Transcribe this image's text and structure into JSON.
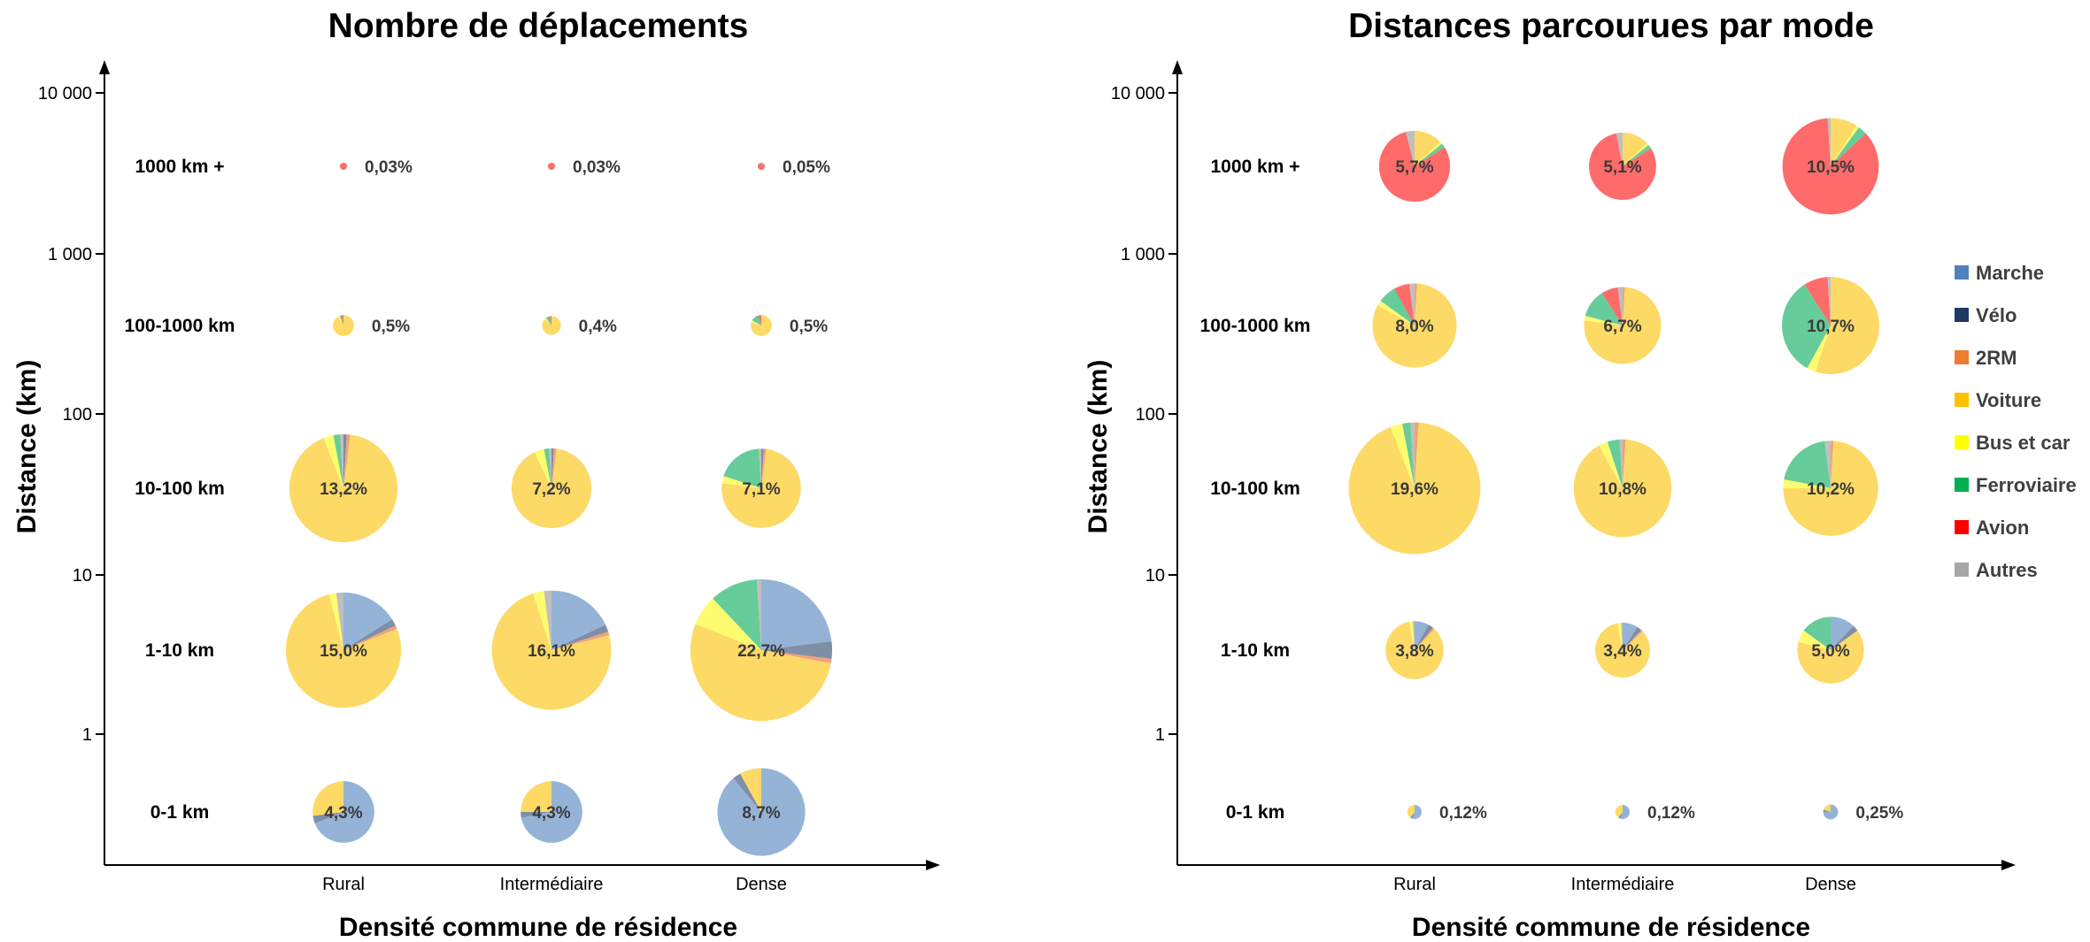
{
  "modes": [
    {
      "name": "Marche",
      "color": "#95b3d7"
    },
    {
      "name": "Vélo",
      "color": "#7f8fa6"
    },
    {
      "name": "2RM",
      "color": "#f2a27a"
    },
    {
      "name": "Voiture",
      "color": "#fdd966"
    },
    {
      "name": "Bus et car",
      "color": "#fdfc6e"
    },
    {
      "name": "Ferroviaire",
      "color": "#66cc99"
    },
    {
      "name": "Avion",
      "color": "#fe6b6b"
    },
    {
      "name": "Autres",
      "color": "#bfbfbf"
    }
  ],
  "legend": [
    {
      "name": "Marche",
      "color": "#4f81bd"
    },
    {
      "name": "Vélo",
      "color": "#1f3864"
    },
    {
      "name": "2RM",
      "color": "#ed7d31"
    },
    {
      "name": "Voiture",
      "color": "#ffc000"
    },
    {
      "name": "Bus et car",
      "color": "#ffff00"
    },
    {
      "name": "Ferroviaire",
      "color": "#00b050"
    },
    {
      "name": "Avion",
      "color": "#ff0000"
    },
    {
      "name": "Autres",
      "color": "#a6a6a6"
    }
  ],
  "chart_data": [
    {
      "type": "pie-grid",
      "title": "Nombre de déplacements",
      "xlabel": "Densité commune de résidence",
      "ylabel": "Distance (km)",
      "y_ticks": [
        "10 000",
        "1 000",
        "100",
        "10",
        "1"
      ],
      "columns": [
        "Rural",
        "Intermédiaire",
        "Dense"
      ],
      "rows": [
        "1000 km +",
        "100-1000 km",
        "10-100 km",
        "1-10 km",
        "0-1 km"
      ],
      "cells": [
        [
          {
            "label": "0,03%",
            "value": 0.03,
            "shares": [
              0,
              0,
              0,
              0,
              0,
              0,
              100,
              0
            ]
          },
          {
            "label": "0,03%",
            "value": 0.03,
            "shares": [
              0,
              0,
              0,
              0,
              0,
              0,
              100,
              0
            ]
          },
          {
            "label": "0,05%",
            "value": 0.05,
            "shares": [
              0,
              0,
              0,
              0,
              0,
              10,
              90,
              0
            ]
          }
        ],
        [
          {
            "label": "0,5%",
            "value": 0.5,
            "shares": [
              0,
              0,
              0,
              91,
              3,
              3,
              3,
              0
            ]
          },
          {
            "label": "0,4%",
            "value": 0.4,
            "shares": [
              0,
              0,
              0,
              87,
              3,
              7,
              3,
              0
            ]
          },
          {
            "label": "0,5%",
            "value": 0.5,
            "shares": [
              0,
              0,
              0,
              80,
              3,
              12,
              5,
              0
            ]
          }
        ],
        [
          {
            "label": "13,2%",
            "value": 13.2,
            "shares": [
              0,
              1,
              1,
              92,
              3,
              2,
              0,
              1
            ]
          },
          {
            "label": "7,2%",
            "value": 7.2,
            "shares": [
              0,
              1,
              1,
              91,
              4,
              2,
              0,
              1
            ]
          },
          {
            "label": "7,1%",
            "value": 7.1,
            "shares": [
              0,
              1,
              1,
              75,
              3,
              19,
              0,
              1
            ]
          }
        ],
        [
          {
            "label": "15,0%",
            "value": 15.0,
            "shares": [
              16,
              2,
              1,
              77,
              2,
              0,
              0,
              2
            ]
          },
          {
            "label": "16,1%",
            "value": 16.1,
            "shares": [
              18,
              2,
              1,
              74,
              3,
              0,
              0,
              2
            ]
          },
          {
            "label": "22,7%",
            "value": 22.7,
            "shares": [
              23,
              4,
              1,
              53,
              7,
              11,
              0,
              1
            ]
          }
        ],
        [
          {
            "label": "4,3%",
            "value": 4.3,
            "shares": [
              69,
              4,
              0,
              27,
              0,
              0,
              0,
              0
            ]
          },
          {
            "label": "4,3%",
            "value": 4.3,
            "shares": [
              72,
              3,
              0,
              25,
              0,
              0,
              0,
              0
            ]
          },
          {
            "label": "8,7%",
            "value": 8.7,
            "shares": [
              89,
              3,
              0,
              8,
              0,
              0,
              0,
              0
            ]
          }
        ]
      ]
    },
    {
      "type": "pie-grid",
      "title": "Distances parcourues par mode",
      "xlabel": "Densité commune de résidence",
      "ylabel": "Distance (km)",
      "y_ticks": [
        "10 000",
        "1 000",
        "100",
        "10",
        "1"
      ],
      "columns": [
        "Rural",
        "Intermédiaire",
        "Dense"
      ],
      "rows": [
        "1000 km +",
        "100-1000 km",
        "10-100 km",
        "1-10 km",
        "0-1 km"
      ],
      "cells": [
        [
          {
            "label": "5,7%",
            "value": 5.7,
            "shares": [
              0,
              0,
              0,
              13,
              1,
              2,
              80,
              4
            ]
          },
          {
            "label": "5,1%",
            "value": 5.1,
            "shares": [
              0,
              0,
              0,
              13,
              1,
              2,
              81,
              3
            ]
          },
          {
            "label": "10,5%",
            "value": 10.5,
            "shares": [
              0,
              0,
              0,
              9,
              1,
              3,
              86,
              1
            ]
          }
        ],
        [
          {
            "label": "8,0%",
            "value": 8.0,
            "shares": [
              0,
              0,
              1,
              82,
              2,
              7,
              6,
              2
            ]
          },
          {
            "label": "6,7%",
            "value": 6.7,
            "shares": [
              0,
              0,
              1,
              76,
              2,
              12,
              7,
              2
            ]
          },
          {
            "label": "10,7%",
            "value": 10.7,
            "shares": [
              0,
              0,
              0,
              55,
              3,
              33,
              8,
              1
            ]
          }
        ],
        [
          {
            "label": "19,6%",
            "value": 19.6,
            "shares": [
              0,
              0,
              1,
              93,
              3,
              2,
              0,
              1
            ]
          },
          {
            "label": "10,8%",
            "value": 10.8,
            "shares": [
              0,
              0,
              1,
              91,
              3,
              4,
              0,
              1
            ]
          },
          {
            "label": "10,2%",
            "value": 10.2,
            "shares": [
              0,
              0,
              1,
              74,
              3,
              20,
              0,
              2
            ]
          }
        ],
        [
          {
            "label": "3,8%",
            "value": 3.8,
            "shares": [
              8,
              3,
              1,
              85,
              2,
              0,
              0,
              1
            ]
          },
          {
            "label": "3,4%",
            "value": 3.4,
            "shares": [
              9,
              3,
              1,
              84,
              2,
              0,
              0,
              1
            ]
          },
          {
            "label": "5,0%",
            "value": 5.0,
            "shares": [
              12,
              3,
              0,
              64,
              6,
              15,
              0,
              0
            ]
          }
        ],
        [
          {
            "label": "0,12%",
            "value": 0.12,
            "shares": [
              55,
              5,
              0,
              40,
              0,
              0,
              0,
              0
            ]
          },
          {
            "label": "0,12%",
            "value": 0.12,
            "shares": [
              55,
              5,
              0,
              40,
              0,
              0,
              0,
              0
            ]
          },
          {
            "label": "0,25%",
            "value": 0.25,
            "shares": [
              75,
              5,
              0,
              20,
              0,
              0,
              0,
              0
            ]
          }
        ]
      ]
    }
  ]
}
